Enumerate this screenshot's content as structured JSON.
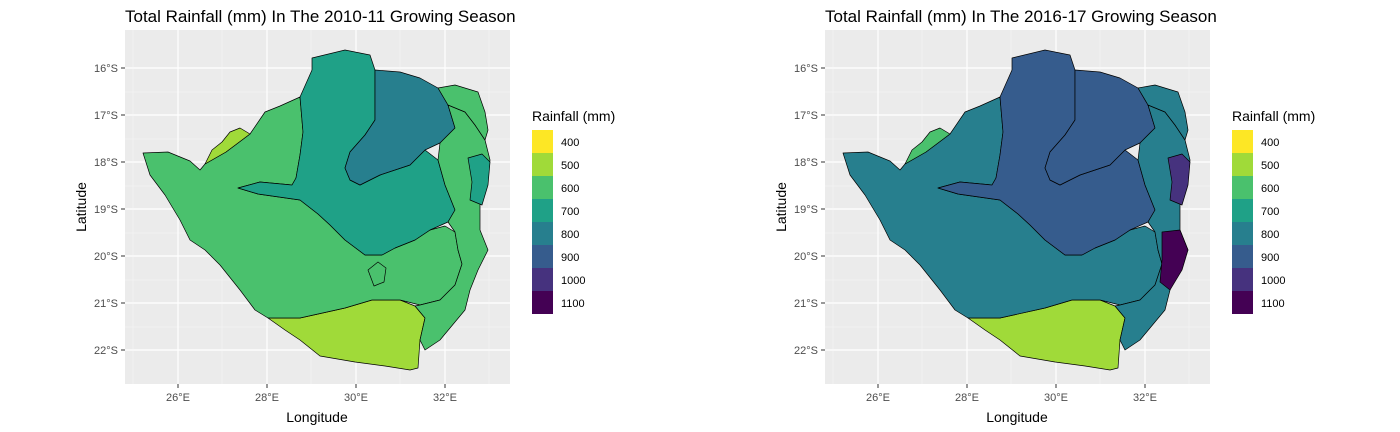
{
  "legend": {
    "title": "Rainfall (mm)",
    "levels": [
      "400",
      "500",
      "600",
      "700",
      "800",
      "900",
      "1000",
      "1100"
    ],
    "colors": [
      "#FDE725",
      "#A0DA39",
      "#4AC16D",
      "#1FA187",
      "#277F8E",
      "#365C8D",
      "#46327E",
      "#440154"
    ]
  },
  "axes": {
    "xlabel": "Longitude",
    "ylabel": "Latitude",
    "x_ticks": [
      "26°E",
      "28°E",
      "30°E",
      "32°E"
    ],
    "y_ticks": [
      "16°S",
      "17°S",
      "18°S",
      "19°S",
      "20°S",
      "21°S",
      "22°S"
    ]
  },
  "panels": [
    {
      "title": "Total Rainfall (mm) In The 2010-11 Growing Season",
      "zones": {
        "south": 1,
        "west": 2,
        "central": 3,
        "north": 4,
        "east": 2,
        "corner_ne": 2,
        "corner_nw": 1,
        "strip_e": 3,
        "pocket": 2
      }
    },
    {
      "title": "Total Rainfall (mm) In The 2016-17 Growing Season",
      "zones": {
        "south": 1,
        "west": 4,
        "central": 5,
        "north": 5,
        "east": 4,
        "corner_ne": 4,
        "corner_nw": 2,
        "strip_e": 6,
        "pocket": 7
      }
    }
  ]
}
